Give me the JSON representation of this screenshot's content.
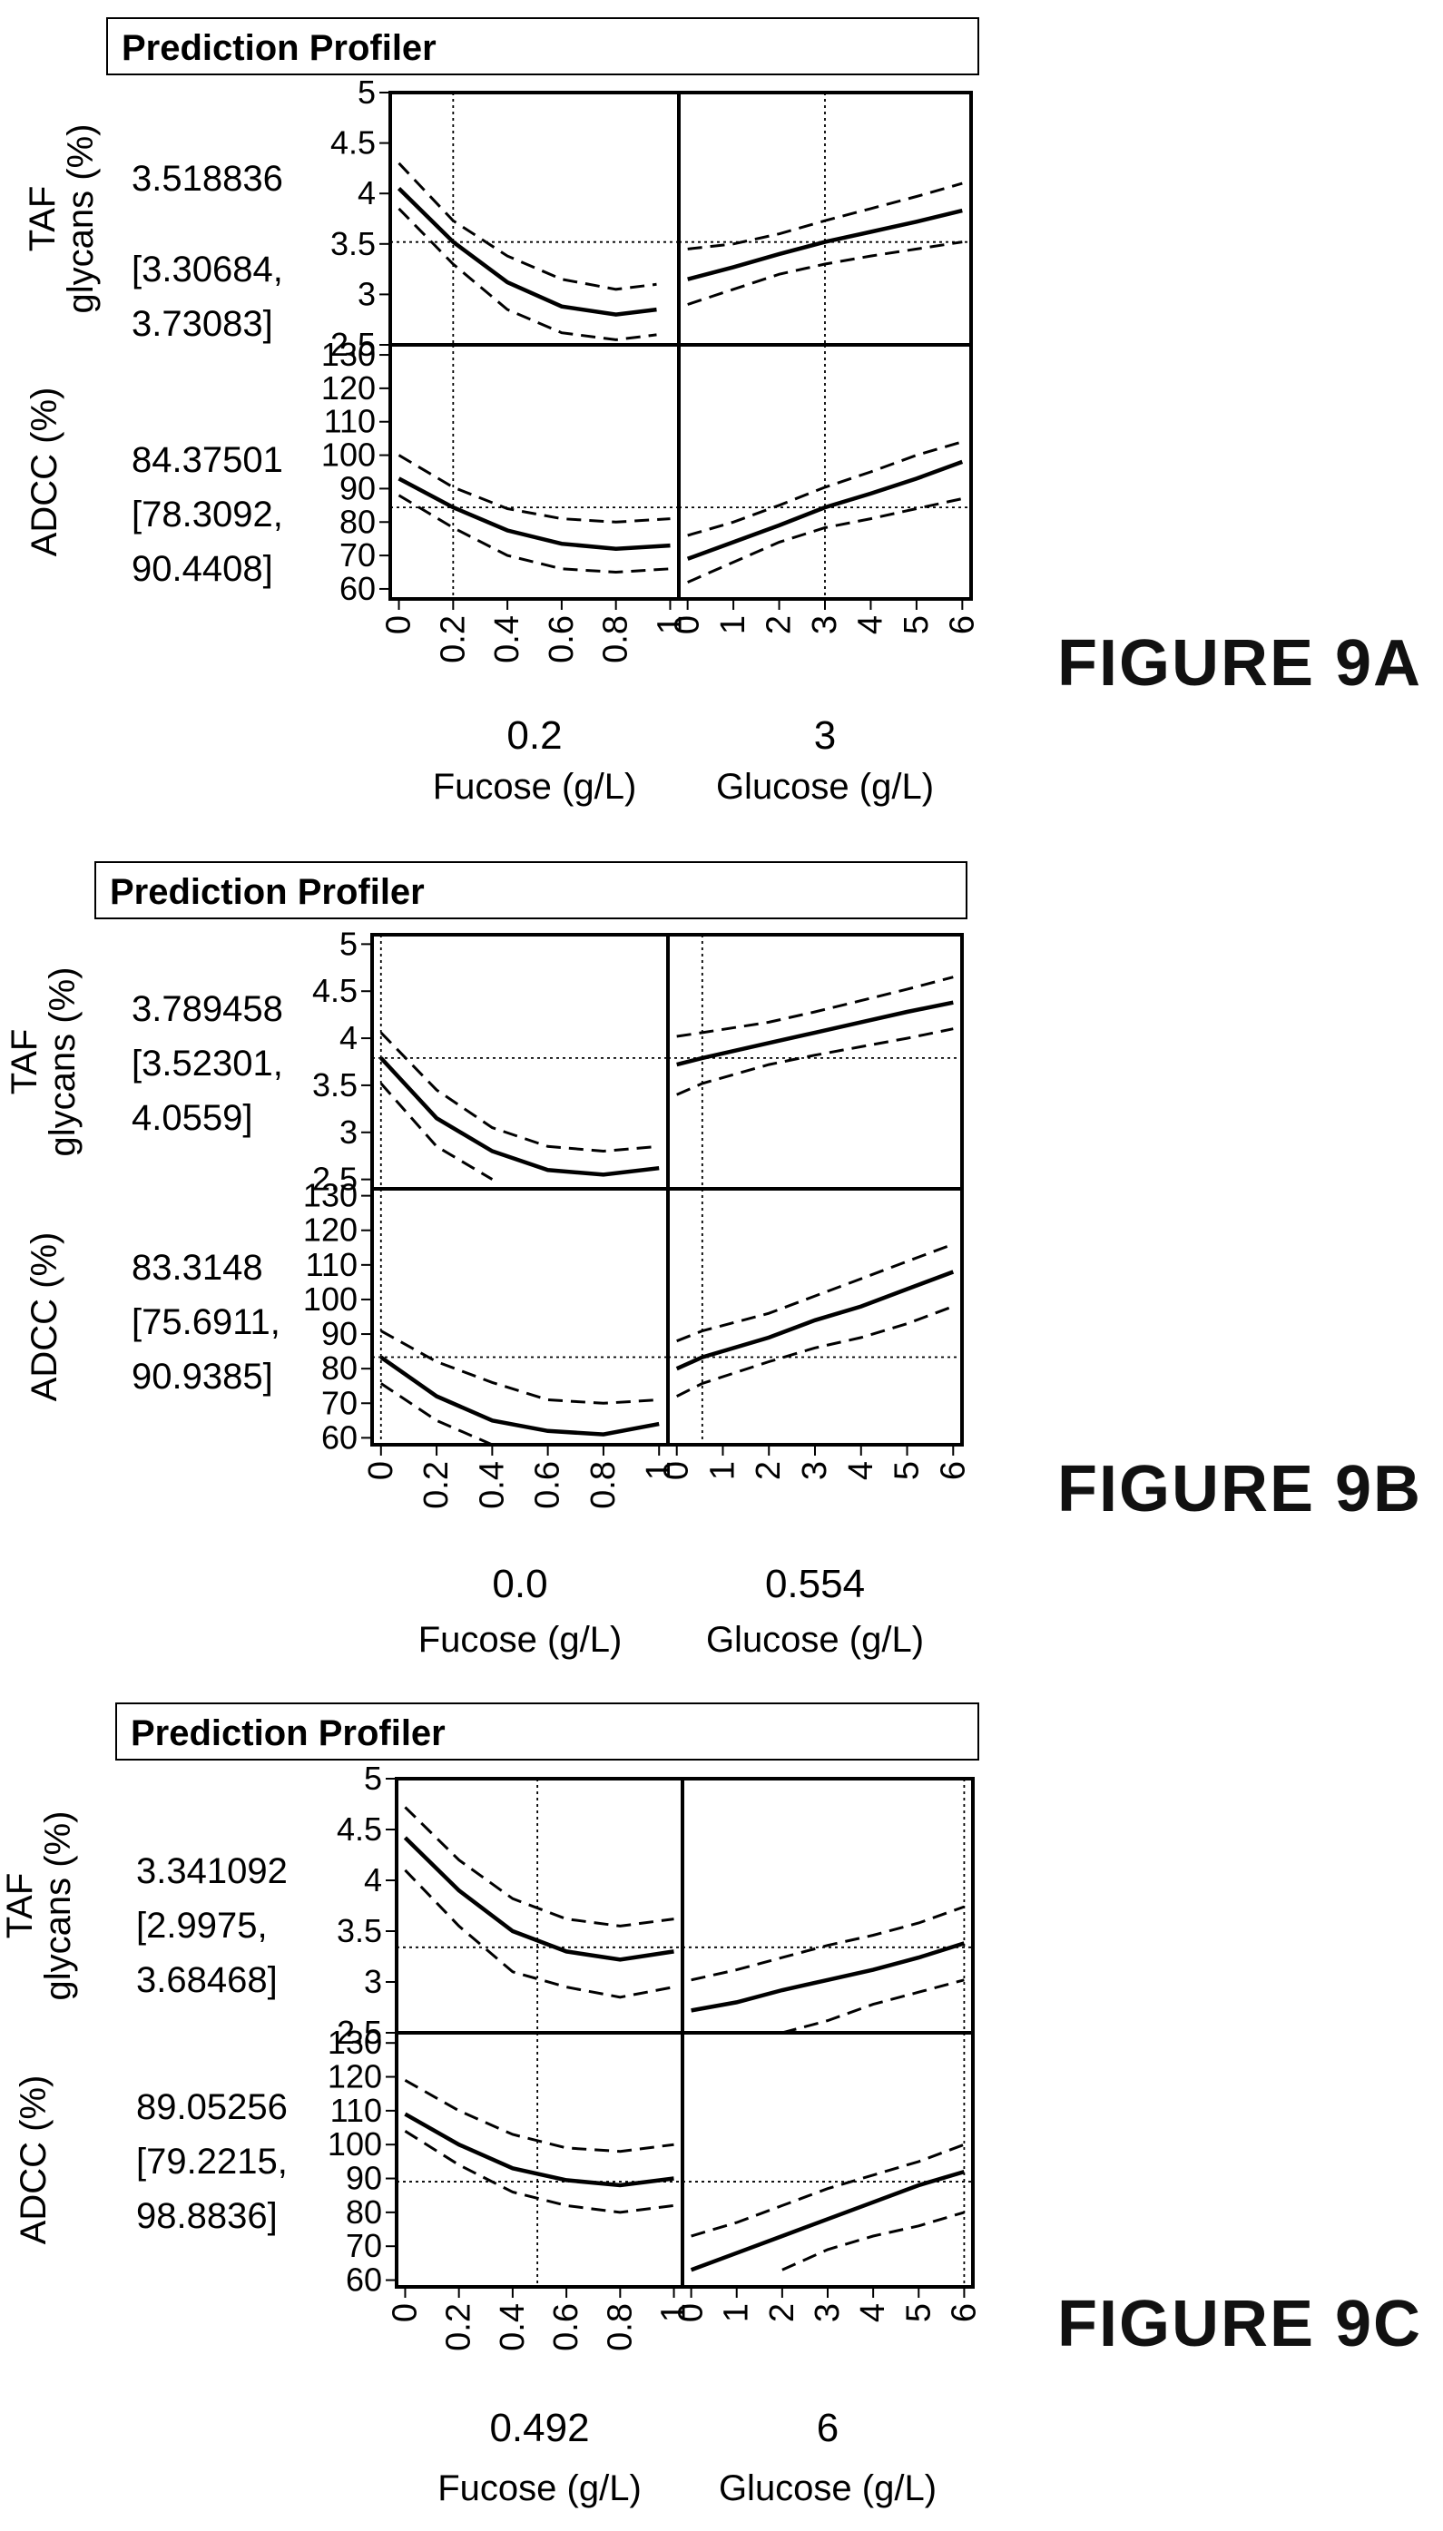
{
  "chart_data": [
    {
      "type": "line",
      "header": "Prediction Profiler",
      "figure_label": "FIGURE 9A",
      "factors": [
        {
          "name": "Fucose (g/L)",
          "current": "0.2",
          "current_value": 0.2,
          "range": [
            0,
            1
          ],
          "ticks": [
            "0",
            "0.2",
            "0.4",
            "0.6",
            "0.8",
            "1"
          ]
        },
        {
          "name": "Glucose (g/L)",
          "current": "3",
          "current_value": 3,
          "range": [
            0,
            6
          ],
          "ticks": [
            "0",
            "1",
            "2",
            "3",
            "4",
            "5",
            "6"
          ]
        }
      ],
      "responses": [
        {
          "name": "TAF glycans (%)",
          "label_lines": [
            "TAF",
            "glycans (%)"
          ],
          "value_text": [
            "3.518836",
            "[3.30684,",
            "3.73083]"
          ],
          "predicted": 3.518836,
          "range": [
            2.5,
            5
          ],
          "ticks": [
            "2.5",
            "3",
            "3.5",
            "4",
            "4.5",
            "5"
          ],
          "curves": [
            {
              "x": [
                0,
                0.2,
                0.4,
                0.6,
                0.8,
                0.95
              ],
              "y": [
                4.05,
                3.52,
                3.12,
                2.88,
                2.8,
                2.85
              ],
              "ci_low": [
                3.85,
                3.3,
                2.85,
                2.62,
                2.55,
                2.6
              ],
              "ci_high": [
                4.3,
                3.73,
                3.38,
                3.15,
                3.05,
                3.1
              ]
            },
            {
              "x": [
                0,
                1,
                2,
                3,
                4,
                5,
                6
              ],
              "y": [
                3.15,
                3.27,
                3.4,
                3.52,
                3.62,
                3.72,
                3.83
              ],
              "ci_low": [
                2.9,
                3.05,
                3.2,
                3.3,
                3.38,
                3.45,
                3.52
              ],
              "ci_high": [
                3.45,
                3.5,
                3.6,
                3.73,
                3.85,
                3.97,
                4.1
              ]
            }
          ]
        },
        {
          "name": "ADCC (%)",
          "label_lines": [
            "ADCC (%)"
          ],
          "value_text": [
            "84.37501",
            "[78.3092,",
            "90.4408]"
          ],
          "predicted": 84.37501,
          "range": [
            57,
            133
          ],
          "ticks": [
            "60",
            "70",
            "80",
            "90",
            "100",
            "110",
            "120",
            "130"
          ],
          "curves": [
            {
              "x": [
                0,
                0.2,
                0.4,
                0.6,
                0.8,
                1
              ],
              "y": [
                93,
                84.4,
                77.5,
                73.5,
                72,
                73
              ],
              "ci_low": [
                88,
                78.3,
                70,
                66,
                65,
                66
              ],
              "ci_high": [
                100,
                90.4,
                84,
                81,
                80,
                81
              ]
            },
            {
              "x": [
                0,
                1,
                2,
                3,
                4,
                5,
                6
              ],
              "y": [
                69,
                74,
                79,
                84.4,
                88.5,
                93,
                98
              ],
              "ci_low": [
                62,
                68,
                74,
                78.3,
                81,
                84,
                87
              ],
              "ci_high": [
                76,
                80,
                85,
                90.4,
                95,
                100,
                104
              ]
            }
          ]
        }
      ]
    },
    {
      "type": "line",
      "header": "Prediction Profiler",
      "figure_label": "FIGURE 9B",
      "factors": [
        {
          "name": "Fucose (g/L)",
          "current": "0.0",
          "current_value": 0.0,
          "range": [
            0,
            1
          ],
          "ticks": [
            "0",
            "0.2",
            "0.4",
            "0.6",
            "0.8",
            "1"
          ]
        },
        {
          "name": "Glucose (g/L)",
          "current": "0.554",
          "current_value": 0.554,
          "range": [
            0,
            6
          ],
          "ticks": [
            "0",
            "1",
            "2",
            "3",
            "4",
            "5",
            "6"
          ]
        }
      ],
      "responses": [
        {
          "name": "TAF glycans (%)",
          "label_lines": [
            "TAF",
            "glycans (%)"
          ],
          "value_text": [
            "3.789458",
            "[3.52301,",
            "4.0559]"
          ],
          "predicted": 3.789458,
          "range": [
            2.4,
            5.1
          ],
          "ticks": [
            "2.5",
            "3",
            "3.5",
            "4",
            "4.5",
            "5"
          ],
          "curves": [
            {
              "x": [
                0,
                0.2,
                0.4,
                0.6,
                0.8,
                1
              ],
              "y": [
                3.79,
                3.15,
                2.8,
                2.6,
                2.55,
                2.62
              ],
              "ci_low": [
                3.52,
                2.85,
                2.5,
                null,
                null,
                null
              ],
              "ci_high": [
                4.06,
                3.45,
                3.05,
                2.85,
                2.8,
                2.85
              ]
            },
            {
              "x": [
                0,
                0.554,
                2,
                3,
                4,
                5,
                6
              ],
              "y": [
                3.72,
                3.79,
                3.95,
                4.06,
                4.17,
                4.28,
                4.38
              ],
              "ci_low": [
                3.4,
                3.52,
                3.72,
                3.82,
                3.91,
                4.0,
                4.1
              ],
              "ci_high": [
                4.02,
                4.06,
                4.17,
                4.28,
                4.4,
                4.52,
                4.65
              ]
            }
          ]
        },
        {
          "name": "ADCC (%)",
          "label_lines": [
            "ADCC (%)"
          ],
          "value_text": [
            "83.3148",
            "[75.6911,",
            "90.9385]"
          ],
          "predicted": 83.3148,
          "range": [
            58,
            132
          ],
          "ticks": [
            "60",
            "70",
            "80",
            "90",
            "100",
            "110",
            "120",
            "130"
          ],
          "curves": [
            {
              "x": [
                0,
                0.2,
                0.4,
                0.6,
                0.8,
                1
              ],
              "y": [
                83.3,
                72,
                65,
                62,
                61,
                64
              ],
              "ci_low": [
                75.7,
                65,
                58,
                null,
                null,
                null
              ],
              "ci_high": [
                90.9,
                82,
                76,
                71,
                70,
                71
              ]
            },
            {
              "x": [
                0,
                0.554,
                2,
                3,
                4,
                5,
                6
              ],
              "y": [
                80,
                83.3,
                89,
                94,
                98,
                103,
                108
              ],
              "ci_low": [
                72,
                75.7,
                82,
                86,
                89,
                93,
                98
              ],
              "ci_high": [
                88,
                90.9,
                96,
                101,
                106,
                111,
                116
              ]
            }
          ]
        }
      ]
    },
    {
      "type": "line",
      "header": "Prediction Profiler",
      "figure_label": "FIGURE 9C",
      "factors": [
        {
          "name": "Fucose (g/L)",
          "current": "0.492",
          "current_value": 0.492,
          "range": [
            0,
            1
          ],
          "ticks": [
            "0",
            "0.2",
            "0.4",
            "0.6",
            "0.8",
            "1"
          ]
        },
        {
          "name": "Glucose (g/L)",
          "current": "6",
          "current_value": 6,
          "range": [
            0,
            6
          ],
          "ticks": [
            "0",
            "1",
            "2",
            "3",
            "4",
            "5",
            "6"
          ]
        }
      ],
      "responses": [
        {
          "name": "TAF glycans (%)",
          "label_lines": [
            "TAF",
            "glycans (%)"
          ],
          "value_text": [
            "3.341092",
            "[2.9975,",
            "3.68468]"
          ],
          "predicted": 3.341092,
          "range": [
            2.5,
            5
          ],
          "ticks": [
            "2.5",
            "3",
            "3.5",
            "4",
            "4.5",
            "5"
          ],
          "curves": [
            {
              "x": [
                0,
                0.2,
                0.4,
                0.6,
                0.8,
                1
              ],
              "y": [
                4.42,
                3.9,
                3.5,
                3.3,
                3.22,
                3.3
              ],
              "ci_low": [
                4.1,
                3.55,
                3.1,
                2.95,
                2.85,
                2.95
              ],
              "ci_high": [
                4.72,
                4.2,
                3.82,
                3.62,
                3.55,
                3.62
              ]
            },
            {
              "x": [
                0,
                1,
                2,
                3,
                4,
                5,
                6
              ],
              "y": [
                2.72,
                2.8,
                2.92,
                3.02,
                3.12,
                3.24,
                3.38
              ],
              "ci_low": [
                null,
                null,
                2.5,
                2.62,
                2.78,
                2.9,
                3.02
              ],
              "ci_high": [
                3.02,
                3.12,
                3.24,
                3.36,
                3.46,
                3.58,
                3.74
              ]
            }
          ]
        },
        {
          "name": "ADCC (%)",
          "label_lines": [
            "ADCC (%)"
          ],
          "value_text": [
            "89.05256",
            "[79.2215,",
            "98.8836]"
          ],
          "predicted": 89.05256,
          "range": [
            58,
            133
          ],
          "ticks": [
            "60",
            "70",
            "80",
            "90",
            "100",
            "110",
            "120",
            "130"
          ],
          "curves": [
            {
              "x": [
                0,
                0.2,
                0.4,
                0.6,
                0.8,
                1
              ],
              "y": [
                109,
                100,
                93,
                89.5,
                88,
                90
              ],
              "ci_low": [
                104,
                94,
                86,
                82,
                80,
                82
              ],
              "ci_high": [
                119,
                110,
                103,
                99,
                98,
                100
              ]
            },
            {
              "x": [
                0,
                1,
                2,
                3,
                4,
                5,
                6
              ],
              "y": [
                63,
                68,
                73,
                78,
                83,
                88,
                92
              ],
              "ci_low": [
                null,
                null,
                63,
                69,
                73,
                76,
                80
              ],
              "ci_high": [
                73,
                77,
                82,
                87,
                91,
                95,
                100
              ]
            }
          ]
        }
      ]
    }
  ]
}
